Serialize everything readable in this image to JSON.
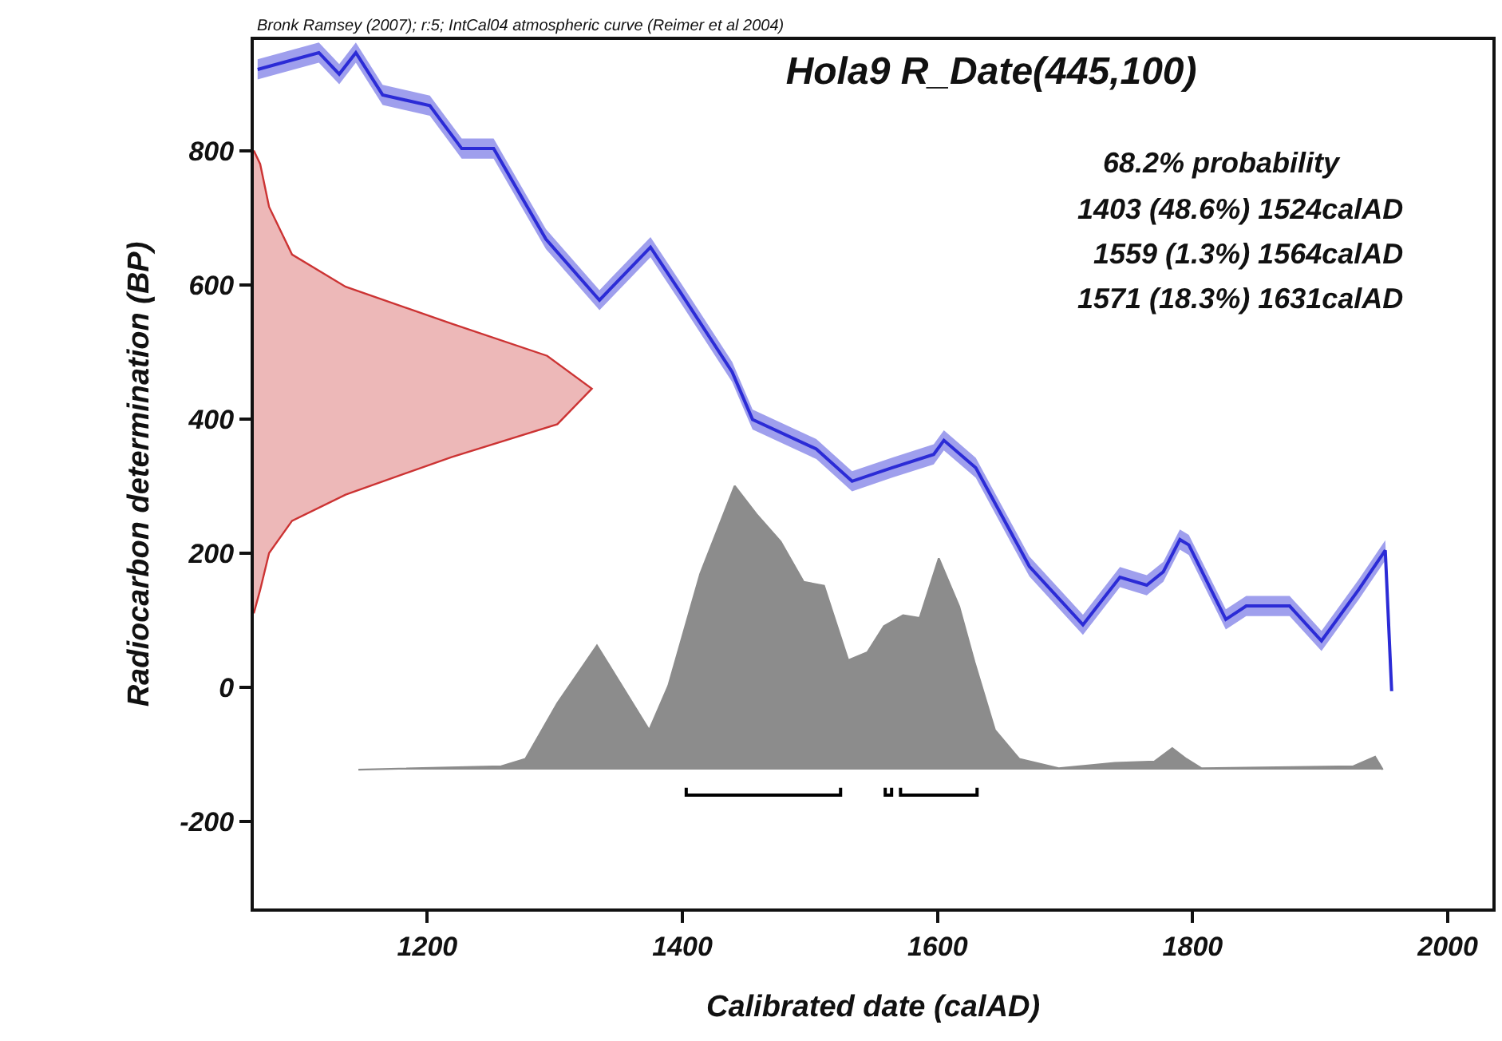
{
  "chart_data": {
    "type": "line",
    "title": "Hola9 R_Date(445,100)",
    "xlabel": "Calibrated date (calAD)",
    "ylabel": "Radiocarbon determination (BP)",
    "annotations": [
      "Bronk Ramsey (2007); r:5; IntCal04 atmospheric curve (Reimer et al 2004)",
      "68.2% probability",
      "1403 (48.6%) 1524calAD",
      "1559 (1.3%) 1564calAD",
      "1571 (18.3%) 1631calAD"
    ],
    "xlim": [
      1064,
      2035
    ],
    "xticks": [
      1200,
      1400,
      1600,
      1800,
      2000
    ],
    "ylim": [
      -330,
      965
    ],
    "yticks": [
      -200,
      0,
      200,
      400,
      600,
      800
    ],
    "series": [
      {
        "type": "area",
        "color": "#cc3333",
        "x": [
          1064,
          1069,
          1076,
          1094,
          1136,
          1219,
          1294,
          1329,
          1302,
          1219,
          1136,
          1094,
          1076,
          1069,
          1064
        ],
        "values": [
          800,
          780,
          716,
          645,
          597,
          542,
          494,
          445,
          392,
          343,
          287,
          248,
          200,
          145,
          110
        ]
      },
      {
        "type": "area",
        "color": "#8c8c8c",
        "x": [
          1146,
          1258,
          1277,
          1302,
          1333,
          1374,
          1389,
          1414,
          1441,
          1458,
          1477,
          1495,
          1511,
          1530,
          1545,
          1558,
          1573,
          1586,
          1601,
          1617,
          1629,
          1645,
          1664,
          1695,
          1739,
          1770,
          1784,
          1795,
          1807,
          1926,
          1943,
          1949
        ],
        "values": [
          -123,
          -118,
          -107,
          -24,
          62,
          -64,
          2,
          169,
          300,
          258,
          217,
          157,
          151,
          40,
          52,
          91,
          107,
          103,
          192,
          120,
          37,
          -64,
          -107,
          -121,
          -113,
          -111,
          -91,
          -107,
          -121,
          -118,
          -104,
          -123
        ]
      },
      {
        "color": "#2b2bd6",
        "x": [
          1067,
          1115,
          1131,
          1144,
          1165,
          1202,
          1227,
          1252,
          1293,
          1335,
          1375,
          1398,
          1439,
          1455,
          1505,
          1533,
          1564,
          1597,
          1605,
          1630,
          1672,
          1714,
          1743,
          1764,
          1777,
          1790,
          1797,
          1826,
          1842,
          1876,
          1901,
          1930,
          1951,
          1956
        ],
        "values": [
          921,
          946,
          914,
          946,
          883,
          867,
          803,
          803,
          668,
          577,
          656,
          590,
          470,
          399,
          355,
          307,
          327,
          347,
          368,
          327,
          180,
          93,
          164,
          152,
          172,
          220,
          212,
          101,
          121,
          121,
          69,
          145,
          204,
          -6
        ],
        "lower": [
          906,
          931,
          899,
          931,
          868,
          852,
          788,
          788,
          653,
          562,
          641,
          575,
          455,
          384,
          340,
          292,
          312,
          332,
          353,
          312,
          165,
          78,
          149,
          137,
          157,
          205,
          197,
          86,
          106,
          106,
          54,
          130,
          189,
          -6
        ],
        "upper": [
          936,
          961,
          929,
          961,
          898,
          882,
          818,
          818,
          683,
          592,
          671,
          605,
          485,
          414,
          370,
          322,
          342,
          362,
          383,
          342,
          195,
          108,
          179,
          167,
          187,
          235,
          227,
          116,
          136,
          136,
          84,
          160,
          219,
          -6
        ]
      },
      {
        "color": "#000000",
        "x": [
          1403,
          1403,
          1524,
          1524,
          null,
          1559,
          1559,
          1564,
          1564,
          null,
          1571,
          1571,
          1631,
          1631
        ],
        "values": [
          -150,
          -161,
          -161,
          -150,
          null,
          -150,
          -161,
          -161,
          -150,
          null,
          -150,
          -161,
          -161,
          -150
        ]
      }
    ]
  }
}
